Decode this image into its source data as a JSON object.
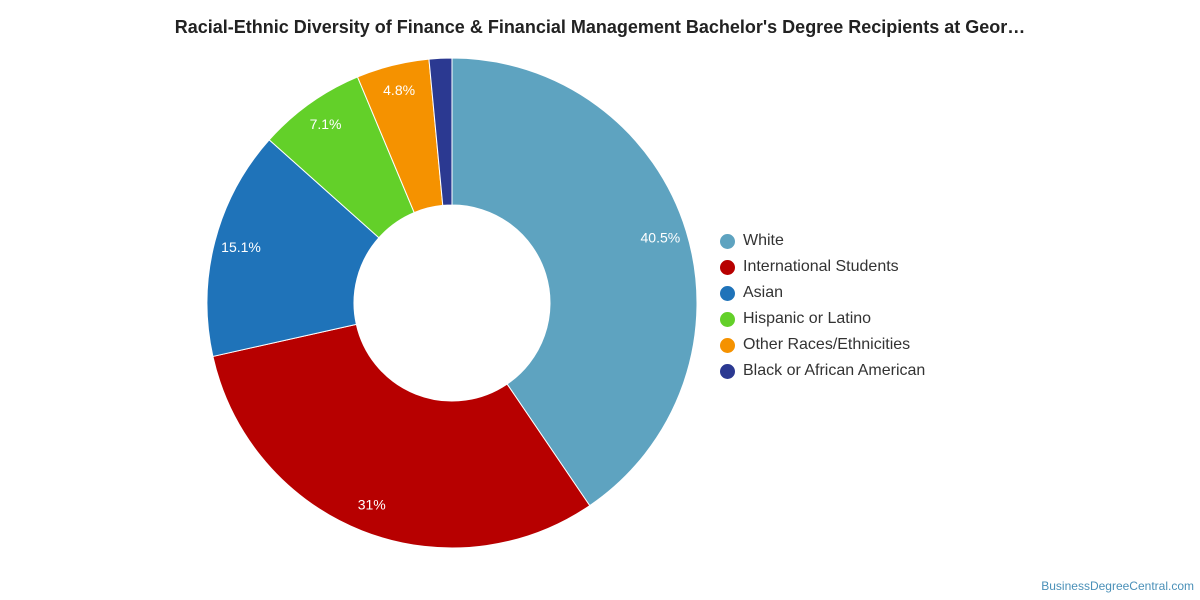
{
  "title": "Racial-Ethnic Diversity of Finance & Financial Management Bachelor's Degree Recipients at Geor…",
  "source": "BusinessDegreeCentral.com",
  "chart_data": {
    "type": "pie",
    "variant": "donut",
    "legend_position": "right",
    "slices": [
      {
        "label": "White",
        "value": 40.5,
        "display": "40.5%",
        "color": "#5ea3c0"
      },
      {
        "label": "International Students",
        "value": 31.0,
        "display": "31%",
        "color": "#b70000"
      },
      {
        "label": "Asian",
        "value": 15.1,
        "display": "15.1%",
        "color": "#1f73b9"
      },
      {
        "label": "Hispanic or Latino",
        "value": 7.1,
        "display": "7.1%",
        "color": "#63d029"
      },
      {
        "label": "Other Races/Ethnicities",
        "value": 4.8,
        "display": "4.8%",
        "color": "#f59200"
      },
      {
        "label": "Black or African American",
        "value": 1.5,
        "display": "",
        "color": "#2b3991"
      }
    ]
  }
}
